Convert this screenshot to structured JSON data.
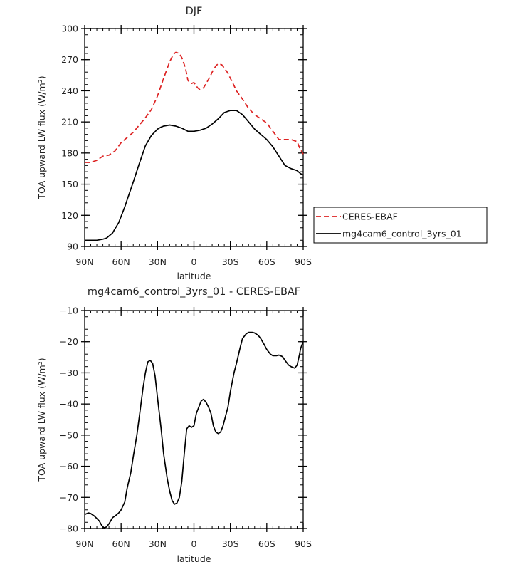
{
  "chart_data": [
    {
      "type": "line",
      "title": "DJF",
      "xlabel": "latitude",
      "ylabel": "TOA upward LW flux (W/m²)",
      "xlim": [
        -90,
        90
      ],
      "ylim": [
        90,
        300
      ],
      "xticks": [
        -90,
        -60,
        -30,
        0,
        30,
        60,
        90
      ],
      "xtick_labels": [
        "90N",
        "60N",
        "30N",
        "0",
        "30S",
        "60S",
        "90S"
      ],
      "yticks": [
        90,
        120,
        150,
        180,
        210,
        240,
        270,
        300
      ],
      "ytick_labels": [
        "90",
        "120",
        "150",
        "180",
        "210",
        "240",
        "270",
        "300"
      ],
      "grid": false,
      "legend_position": "right",
      "series": [
        {
          "name": "CERES-EBAF",
          "color": "#dd2222",
          "dash": "dashed",
          "x": [
            -90,
            -85,
            -80,
            -75,
            -70,
            -65,
            -60,
            -55,
            -50,
            -45,
            -40,
            -35,
            -30,
            -25,
            -20,
            -17,
            -15,
            -12,
            -10,
            -7,
            -5,
            -2,
            0,
            3,
            5,
            8,
            10,
            13,
            15,
            18,
            20,
            23,
            25,
            28,
            30,
            33,
            35,
            40,
            45,
            50,
            55,
            60,
            65,
            70,
            75,
            80,
            85,
            87,
            90
          ],
          "y": [
            171,
            171,
            173,
            177,
            178,
            182,
            190,
            195,
            200,
            207,
            214,
            222,
            235,
            252,
            268,
            275,
            277,
            276,
            272,
            262,
            250,
            247,
            248,
            243,
            241,
            243,
            247,
            253,
            258,
            264,
            266,
            265,
            262,
            257,
            252,
            245,
            240,
            232,
            223,
            217,
            213,
            209,
            201,
            193,
            193,
            193,
            191,
            185,
            179
          ]
        },
        {
          "name": "mg4cam6_control_3yrs_01",
          "color": "#000000",
          "dash": "solid",
          "x": [
            -90,
            -85,
            -80,
            -75,
            -72,
            -70,
            -67,
            -65,
            -62,
            -60,
            -57,
            -55,
            -50,
            -45,
            -40,
            -35,
            -30,
            -27,
            -25,
            -20,
            -15,
            -10,
            -5,
            0,
            5,
            10,
            15,
            20,
            25,
            30,
            35,
            40,
            45,
            50,
            55,
            60,
            65,
            70,
            75,
            80,
            85,
            88,
            90
          ],
          "y": [
            96,
            96,
            96,
            97,
            98,
            100,
            103,
            107,
            113,
            119,
            128,
            135,
            152,
            170,
            187,
            197,
            203,
            205,
            206,
            207,
            206,
            204,
            201,
            201,
            202,
            204,
            208,
            213,
            219,
            221,
            221,
            217,
            210,
            203,
            198,
            193,
            186,
            177,
            168,
            165,
            163,
            160,
            159
          ]
        }
      ]
    },
    {
      "type": "line",
      "title": "mg4cam6_control_3yrs_01 - CERES-EBAF",
      "xlabel": "latitude",
      "ylabel": "TOA upward LW flux (W/m²)",
      "xlim": [
        -90,
        90
      ],
      "ylim": [
        -80,
        -10
      ],
      "xticks": [
        -90,
        -60,
        -30,
        0,
        30,
        60,
        90
      ],
      "xtick_labels": [
        "90N",
        "60N",
        "30N",
        "0",
        "30S",
        "60S",
        "90S"
      ],
      "yticks": [
        -80,
        -70,
        -60,
        -50,
        -40,
        -30,
        -20,
        -10
      ],
      "ytick_labels": [
        "−80",
        "−70",
        "−60",
        "−50",
        "−40",
        "−30",
        "−20",
        "−10"
      ],
      "grid": false,
      "series": [
        {
          "color": "#000000",
          "dash": "solid",
          "x": [
            -90,
            -87,
            -85,
            -82,
            -80,
            -78,
            -76,
            -74,
            -72,
            -70,
            -67,
            -65,
            -62,
            -60,
            -57,
            -55,
            -52,
            -50,
            -47,
            -45,
            -42,
            -40,
            -38,
            -36,
            -34,
            -32,
            -30,
            -27,
            -25,
            -22,
            -20,
            -18,
            -16,
            -14,
            -12,
            -10,
            -8,
            -6,
            -4,
            -2,
            0,
            2,
            4,
            6,
            8,
            10,
            12,
            14,
            16,
            18,
            20,
            22,
            24,
            26,
            28,
            30,
            33,
            35,
            38,
            40,
            43,
            45,
            48,
            50,
            53,
            55,
            58,
            60,
            63,
            65,
            68,
            70,
            73,
            75,
            78,
            80,
            83,
            85,
            87,
            88,
            90
          ],
          "y": [
            -75.5,
            -75,
            -75.2,
            -76,
            -76.8,
            -77.6,
            -79,
            -79.8,
            -79.5,
            -78.5,
            -76.5,
            -76,
            -75,
            -74,
            -71.5,
            -67,
            -62,
            -57,
            -50,
            -44,
            -35,
            -30,
            -26.5,
            -26,
            -27,
            -31,
            -38,
            -48,
            -56,
            -64,
            -68,
            -71,
            -72.2,
            -71.8,
            -70,
            -65,
            -56,
            -48,
            -47,
            -47.5,
            -47,
            -43,
            -41,
            -39,
            -38.5,
            -39.5,
            -41,
            -43,
            -47,
            -49,
            -49.5,
            -49,
            -47,
            -44,
            -41,
            -36,
            -30,
            -27,
            -22,
            -19,
            -17.5,
            -17,
            -17,
            -17.2,
            -18,
            -19,
            -21,
            -22.5,
            -24,
            -24.5,
            -24.5,
            -24.3,
            -24.8,
            -26,
            -27.5,
            -28,
            -28.5,
            -27.5,
            -24,
            -22,
            -20
          ]
        }
      ]
    }
  ]
}
